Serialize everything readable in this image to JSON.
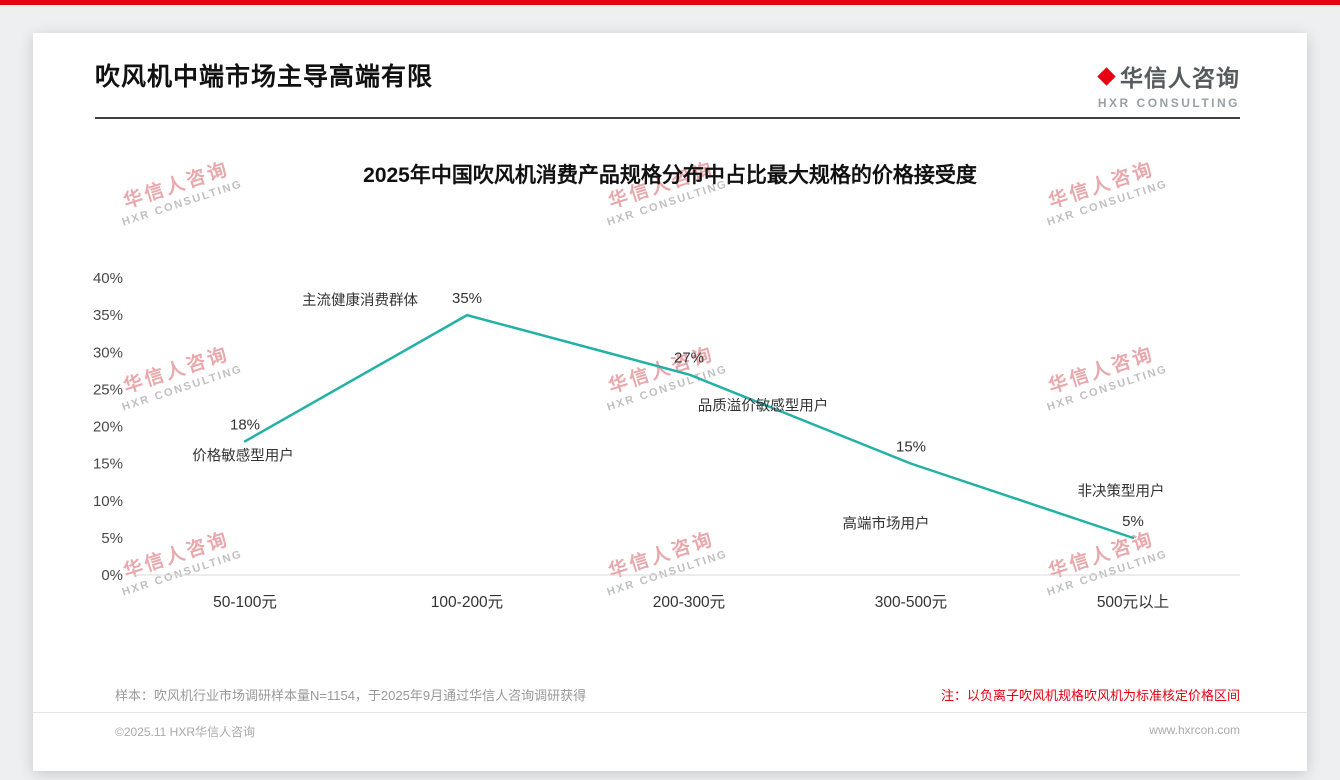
{
  "page": {
    "accent_red": "#e60012",
    "background": "#edeff0",
    "card_background": "#ffffff"
  },
  "header": {
    "title": "吹风机中端市场主导高端有限",
    "logo": {
      "cn": "华信人咨询",
      "en": "HXR CONSULTING"
    }
  },
  "watermark": {
    "line1": "华信人咨询",
    "line2": "HXR CONSULTING"
  },
  "chart_data": {
    "type": "line",
    "title": "2025年中国吹风机消费产品规格分布中占比最大规格的价格接受度",
    "categories": [
      "50-100元",
      "100-200元",
      "200-300元",
      "300-500元",
      "500元以上"
    ],
    "values": [
      18,
      35,
      27,
      15,
      5
    ],
    "value_labels": [
      "18%",
      "35%",
      "27%",
      "15%",
      "5%"
    ],
    "y_ticks": [
      "0%",
      "5%",
      "10%",
      "15%",
      "20%",
      "25%",
      "30%",
      "35%",
      "40%"
    ],
    "ylim": [
      0,
      40
    ],
    "annotations": [
      {
        "point": 0,
        "text": "价格敏感型用户"
      },
      {
        "point": 1,
        "text": "主流健康消费群体"
      },
      {
        "point": 2,
        "text": "品质溢价敏感型用户"
      },
      {
        "point": 3,
        "text": "高端市场用户"
      },
      {
        "point": 4,
        "text": "非决策型用户"
      }
    ],
    "line_color": "#23b1a6",
    "grid": false,
    "legend": "none",
    "xlabel": "",
    "ylabel": ""
  },
  "notes": {
    "sample": "样本：吹风机行业市场调研样本量N=1154，于2025年9月通过华信人咨询调研获得",
    "red_note": "注：以负离子吹风机规格吹风机为标准核定价格区间"
  },
  "footer": {
    "copyright": "©2025.11 HXR华信人咨询",
    "website": "www.hxrcon.com"
  }
}
